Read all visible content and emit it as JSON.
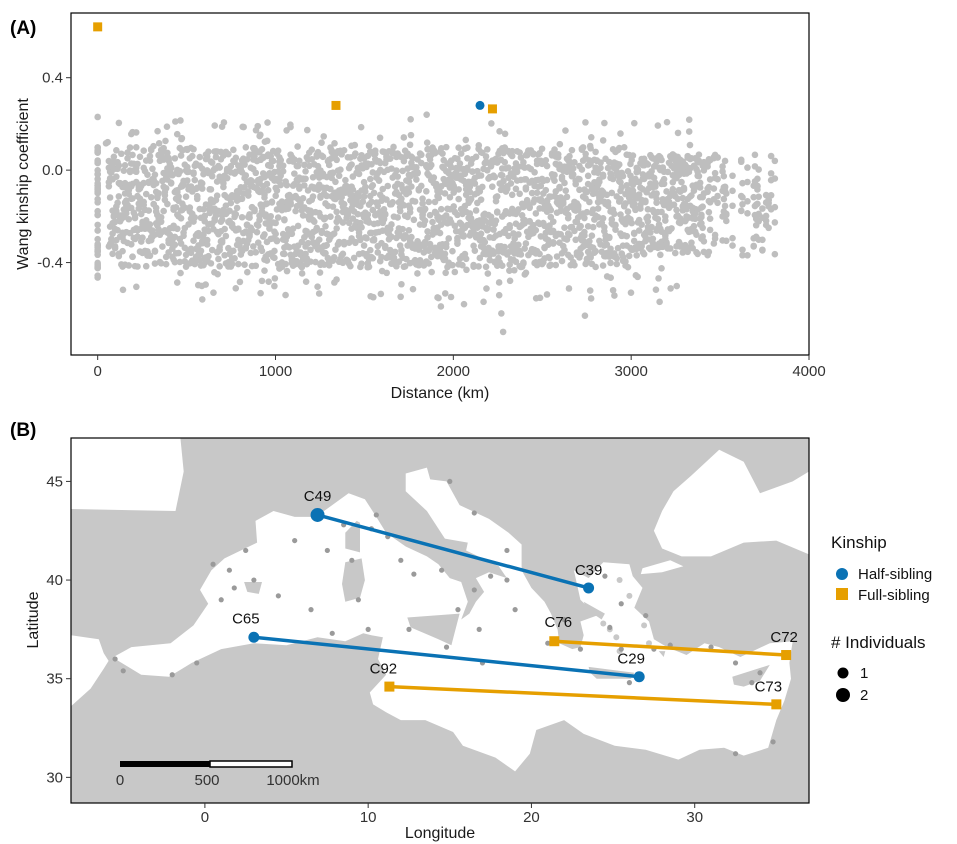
{
  "colors": {
    "background_points": "#bebebe",
    "half_sibling": "#0a72b4",
    "full_sibling": "#e69f00",
    "land": "#c8c8c8",
    "sea": "#ffffff",
    "sample_sites": "#9a9a9a"
  },
  "chart_data": [
    {
      "panel": "(A)",
      "type": "scatter",
      "xlabel": "Distance (km)",
      "ylabel": "Wang kinship coefficient",
      "xlim": [
        -150,
        4000
      ],
      "ylim": [
        -0.8,
        0.68
      ],
      "xticks": [
        0,
        1000,
        2000,
        3000,
        4000
      ],
      "xtick_labels": [
        "0",
        "1000",
        "2000",
        "3000",
        "4000"
      ],
      "yticks": [
        -0.4,
        0.0,
        0.4
      ],
      "ytick_labels": [
        "-0.4",
        "0.0",
        "0.4"
      ],
      "grid": false,
      "background_cloud": {
        "description_of_series": "all pairwise comparisons (unrelated)",
        "x_range": [
          0,
          3830
        ],
        "y_core_range": [
          -0.42,
          0.1
        ],
        "y_extreme_range": [
          -0.72,
          0.24
        ]
      },
      "highlighted": [
        {
          "kinship": "Full-sibling",
          "x": 0,
          "y": 0.62
        },
        {
          "kinship": "Full-sibling",
          "x": 1340,
          "y": 0.28
        },
        {
          "kinship": "Half-sibling",
          "x": 2150,
          "y": 0.28
        },
        {
          "kinship": "Full-sibling",
          "x": 2220,
          "y": 0.265
        }
      ]
    },
    {
      "panel": "(B)",
      "type": "map",
      "xlabel": "Longitude",
      "ylabel": "Latitude",
      "xlim": [
        -8.2,
        37.0
      ],
      "ylim": [
        28.7,
        47.2
      ],
      "xticks": [
        0,
        10,
        20,
        30
      ],
      "xtick_labels": [
        "0",
        "10",
        "20",
        "30"
      ],
      "yticks": [
        30,
        35,
        40,
        45
      ],
      "ytick_labels": [
        "30",
        "35",
        "40",
        "45"
      ],
      "sites": [
        {
          "id": "C49",
          "lon": 6.9,
          "lat": 43.3,
          "kinship": "Half-sibling",
          "individuals": 2
        },
        {
          "id": "C39",
          "lon": 23.5,
          "lat": 39.6,
          "kinship": "Half-sibling",
          "individuals": 1
        },
        {
          "id": "C65",
          "lon": 3.0,
          "lat": 37.1,
          "kinship": "Half-sibling",
          "individuals": 1
        },
        {
          "id": "C29",
          "lon": 26.6,
          "lat": 35.1,
          "kinship": "Half-sibling",
          "individuals": 1
        },
        {
          "id": "C76",
          "lon": 21.4,
          "lat": 36.9,
          "kinship": "Full-sibling",
          "individuals": 1
        },
        {
          "id": "C72",
          "lon": 35.6,
          "lat": 36.2,
          "kinship": "Full-sibling",
          "individuals": 1
        },
        {
          "id": "C92",
          "lon": 11.3,
          "lat": 34.6,
          "kinship": "Full-sibling",
          "individuals": 1
        },
        {
          "id": "C73",
          "lon": 35.0,
          "lat": 33.7,
          "kinship": "Full-sibling",
          "individuals": 1
        }
      ],
      "links": [
        {
          "from": "C49",
          "to": "C39",
          "kinship": "Half-sibling"
        },
        {
          "from": "C65",
          "to": "C29",
          "kinship": "Half-sibling"
        },
        {
          "from": "C76",
          "to": "C72",
          "kinship": "Full-sibling"
        },
        {
          "from": "C92",
          "to": "C73",
          "kinship": "Full-sibling"
        }
      ],
      "sample_sites": [
        [
          -5.5,
          36.0
        ],
        [
          -5.0,
          35.4
        ],
        [
          -2.0,
          35.2
        ],
        [
          -0.5,
          35.8
        ],
        [
          1.0,
          39.0
        ],
        [
          1.8,
          39.6
        ],
        [
          0.5,
          40.8
        ],
        [
          1.5,
          40.5
        ],
        [
          2.5,
          41.5
        ],
        [
          3.0,
          40.0
        ],
        [
          4.5,
          39.2
        ],
        [
          6.5,
          38.5
        ],
        [
          5.5,
          42.0
        ],
        [
          7.5,
          41.5
        ],
        [
          8.5,
          42.8
        ],
        [
          9.0,
          41.0
        ],
        [
          10.2,
          42.6
        ],
        [
          10.5,
          43.3
        ],
        [
          11.2,
          42.2
        ],
        [
          12.0,
          41.0
        ],
        [
          12.8,
          40.3
        ],
        [
          14.5,
          40.5
        ],
        [
          9.4,
          39.0
        ],
        [
          7.8,
          37.3
        ],
        [
          10.0,
          37.5
        ],
        [
          12.5,
          37.5
        ],
        [
          14.8,
          36.6
        ],
        [
          15.5,
          38.5
        ],
        [
          16.5,
          39.5
        ],
        [
          16.8,
          37.5
        ],
        [
          17.5,
          40.2
        ],
        [
          18.5,
          40.0
        ],
        [
          19.0,
          38.5
        ],
        [
          18.5,
          41.5
        ],
        [
          15.0,
          45.0
        ],
        [
          16.5,
          43.4
        ],
        [
          17.0,
          35.8
        ],
        [
          22.0,
          38.0
        ],
        [
          21.0,
          36.8
        ],
        [
          23.0,
          36.5
        ],
        [
          24.8,
          37.6
        ],
        [
          25.5,
          38.8
        ],
        [
          24.5,
          40.2
        ],
        [
          25.5,
          36.5
        ],
        [
          27.0,
          38.2
        ],
        [
          27.5,
          36.5
        ],
        [
          28.5,
          36.7
        ],
        [
          31.0,
          36.6
        ],
        [
          32.5,
          35.8
        ],
        [
          34.0,
          35.3
        ],
        [
          33.5,
          34.8
        ],
        [
          26.0,
          34.8
        ],
        [
          34.8,
          31.8
        ],
        [
          32.5,
          31.2
        ]
      ],
      "scale_bar": {
        "labels": [
          "0",
          "500",
          "1000km"
        ]
      }
    }
  ],
  "legend": {
    "kinship_title": "Kinship",
    "kinship_items": [
      {
        "label": "Half-sibling",
        "color": "#0a72b4",
        "shape": "circle"
      },
      {
        "label": "Full-sibling",
        "color": "#e69f00",
        "shape": "square"
      }
    ],
    "size_title": "# Individuals",
    "size_items": [
      {
        "label": "1",
        "size": 1
      },
      {
        "label": "2",
        "size": 2
      }
    ]
  }
}
